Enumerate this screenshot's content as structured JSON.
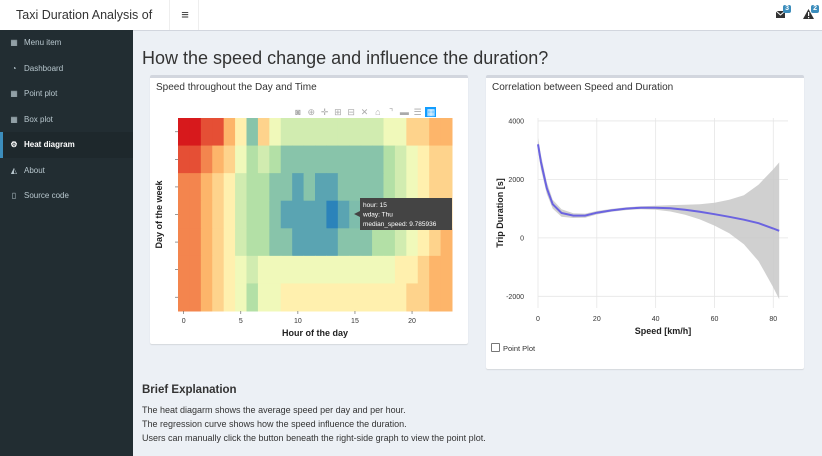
{
  "app": {
    "title": "Taxi Duration Analysis of NYC",
    "menu_icon": "hamburger-icon"
  },
  "header": {
    "icons": [
      {
        "name": "envelope-icon",
        "badge": "3",
        "badge_color": "#3c8dbc"
      },
      {
        "name": "warning-icon",
        "badge": "2",
        "badge_color": "#3c8dbc"
      }
    ]
  },
  "sidebar": {
    "items": [
      {
        "label": "Menu item",
        "icon": "calendar-icon",
        "glyph": "▦"
      },
      {
        "label": "Dashboard",
        "icon": "dashboard-icon",
        "glyph": "◔"
      },
      {
        "label": "Point plot",
        "icon": "grid-icon",
        "glyph": "▦"
      },
      {
        "label": "Box plot",
        "icon": "th-large-icon",
        "glyph": "▦"
      },
      {
        "label": "Heat diagram",
        "icon": "cogs-icon",
        "glyph": "⚙",
        "active": true
      },
      {
        "label": "About",
        "icon": "area-chart-icon",
        "glyph": "◭"
      },
      {
        "label": "Source code",
        "icon": "file-icon",
        "glyph": "▯"
      }
    ]
  },
  "main": {
    "title": "How the speed change and influence the duration?",
    "left_box_title": "Speed throughout the Day and Time",
    "right_box_title": "Correlation between Speed and Duration",
    "checkbox_label": "Point Plot",
    "explanation": {
      "title": "Brief Explanation",
      "lines": [
        "The heat diagarm shows the average speed per day and per hour.",
        "The regression curve shows how the speed influence the duration.",
        "Users can manually click the button beneath the right-side graph to view the point plot."
      ]
    }
  },
  "modebar_icons": [
    "camera-icon",
    "zoom-icon",
    "pan-icon",
    "zoom-in-icon",
    "zoom-out-icon",
    "autoscale-icon",
    "reset-axes-icon",
    "spike-lines-icon",
    "hover-closest-icon",
    "hover-compare-icon",
    "plotly-logo-icon"
  ],
  "tooltip": {
    "lines": [
      "hour: 15",
      "wday: Thu",
      "median_speed:  9.785936"
    ]
  },
  "chart_data": [
    {
      "type": "heatmap",
      "title": "",
      "xlabel": "Hour of the day",
      "ylabel": "Day of the week",
      "x_ticks": [
        "0",
        "5",
        "10",
        "15",
        "20"
      ],
      "x": [
        0,
        1,
        2,
        3,
        4,
        5,
        6,
        7,
        8,
        9,
        10,
        11,
        12,
        13,
        14,
        15,
        16,
        17,
        18,
        19,
        20,
        21,
        22,
        23
      ],
      "rows": 7,
      "z": [
        [
          19,
          19,
          18,
          18,
          16,
          14,
          10,
          15,
          13,
          12,
          12,
          12,
          12,
          12,
          12,
          12,
          12,
          12,
          13,
          13,
          15,
          15,
          16,
          16
        ],
        [
          18,
          18,
          17,
          16,
          15,
          13,
          11,
          12,
          11,
          10,
          10,
          10,
          10,
          10,
          10,
          10,
          10,
          10,
          11,
          12,
          13,
          14,
          15,
          15
        ],
        [
          17,
          17,
          16,
          15,
          14,
          12,
          11,
          11,
          10,
          10,
          9,
          10,
          9,
          9,
          10,
          10,
          10,
          10,
          11,
          12,
          13,
          14,
          15,
          15
        ],
        [
          17,
          17,
          16,
          15,
          14,
          12,
          11,
          11,
          10,
          9,
          9,
          9,
          9,
          8,
          9,
          9.785936,
          10,
          10,
          11,
          12,
          13,
          14,
          15,
          15
        ],
        [
          17,
          17,
          16,
          15,
          14,
          12,
          11,
          11,
          10,
          10,
          9,
          9,
          9,
          9,
          10,
          10,
          10,
          11,
          11,
          12,
          13,
          14,
          15,
          16
        ],
        [
          17,
          17,
          16,
          15,
          14,
          13,
          12,
          13,
          13,
          13,
          13,
          13,
          13,
          13,
          13,
          13,
          13,
          13,
          13,
          14,
          14,
          15,
          16,
          16
        ],
        [
          17,
          17,
          16,
          15,
          14,
          13,
          11,
          13,
          13,
          14,
          14,
          14,
          14,
          14,
          14,
          14,
          14,
          14,
          14,
          14,
          15,
          15,
          16,
          16
        ]
      ],
      "colorscale": [
        "#d7191c",
        "#fdae61",
        "#ffffbf",
        "#abdda4",
        "#2b83ba"
      ],
      "zmin": 8,
      "zmax": 19
    },
    {
      "type": "line",
      "title": "",
      "xlabel": "Speed [km/h]",
      "ylabel": "Trip Duration [s]",
      "xlim": [
        0,
        85
      ],
      "ylim": [
        -2400,
        4100
      ],
      "x_ticks": [
        0,
        20,
        40,
        60,
        80
      ],
      "y_ticks": [
        -2000,
        0,
        2000,
        4000
      ],
      "series": [
        {
          "x": [
            0,
            1,
            3,
            5,
            8,
            12,
            16,
            20,
            25,
            30,
            35,
            40,
            45,
            50,
            55,
            60,
            65,
            70,
            75,
            80,
            82
          ],
          "y": [
            3200,
            2600,
            1700,
            1150,
            850,
            760,
            760,
            860,
            940,
            1000,
            1030,
            1030,
            1010,
            960,
            890,
            810,
            720,
            620,
            500,
            320,
            240
          ],
          "lower": [
            3000,
            2350,
            1500,
            1000,
            720,
            680,
            690,
            800,
            890,
            950,
            980,
            960,
            900,
            790,
            630,
            420,
            160,
            -220,
            -800,
            -1700,
            -2100
          ],
          "upper": [
            3420,
            2850,
            1900,
            1300,
            980,
            840,
            830,
            920,
            990,
            1050,
            1080,
            1100,
            1120,
            1130,
            1150,
            1200,
            1300,
            1460,
            1820,
            2350,
            2580
          ],
          "color": "#6b63e0",
          "band_color": "#c8c8c8"
        }
      ]
    }
  ]
}
